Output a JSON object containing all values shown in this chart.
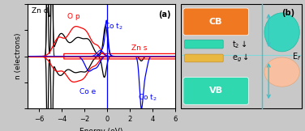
{
  "panel_a_label": "(a)",
  "panel_b_label": "(b)",
  "xlabel": "Energy (eV)",
  "ylabel": "n (electrons)",
  "xlim": [
    -7,
    6
  ],
  "ylim": [
    -4,
    4
  ],
  "xticks": [
    -6,
    -4,
    -2,
    0,
    2,
    4,
    6
  ],
  "cb_color": "#f07820",
  "vb_color": "#30d8b0",
  "t2_color": "#30d8b0",
  "eg_color": "#e8b840",
  "fermi_line_color": "#40c0c8",
  "arrow_color": "#40c0c8",
  "cb_label": "CB",
  "vb_label": "VB"
}
